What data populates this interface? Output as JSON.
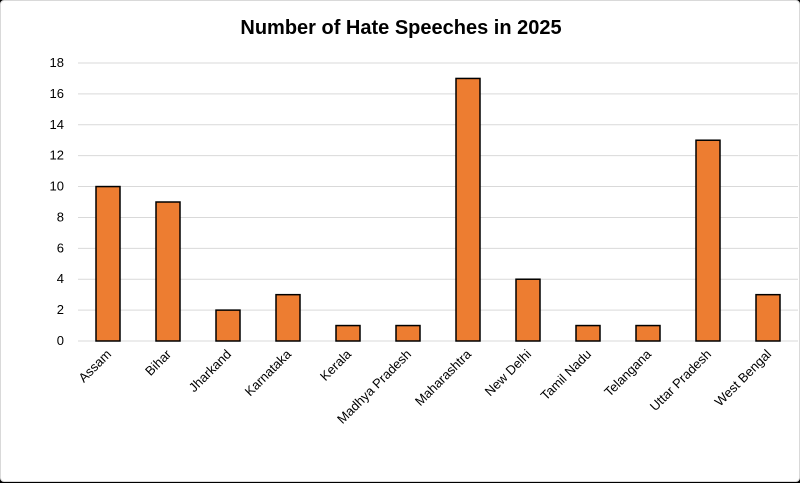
{
  "chart_data": {
    "type": "bar",
    "title": "Number of Hate Speeches in 2025",
    "categories": [
      "Assam",
      "Bihar",
      "Jharkand",
      "Karnataka",
      "Kerala",
      "Madhya Pradesh",
      "Maharashtra",
      "New Delhi",
      "Tamil Nadu",
      "Telangana",
      "Uttar Pradesh",
      "West Bengal"
    ],
    "values": [
      10,
      9,
      2,
      3,
      1,
      1,
      17,
      4,
      1,
      1,
      13,
      3
    ],
    "ylim": [
      0,
      18
    ],
    "yticks": [
      "0",
      "2",
      "4",
      "6",
      "8",
      "10",
      "12",
      "14",
      "16",
      "18"
    ],
    "xlabel": "",
    "ylabel": "",
    "grid": true,
    "legend": "none",
    "colors": {
      "bar_fill": "#ED7D31",
      "bar_stroke": "#000000",
      "grid": "#d9d9d9",
      "background": "#ffffff"
    }
  }
}
